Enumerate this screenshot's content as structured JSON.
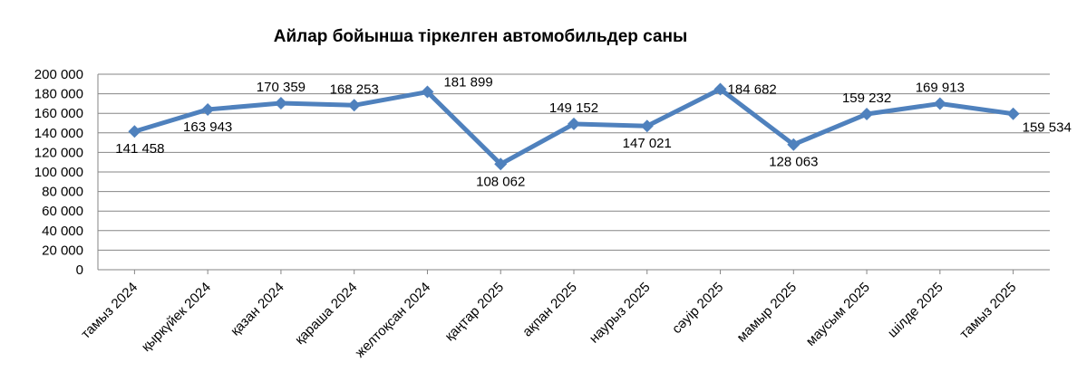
{
  "chart_data": {
    "type": "line",
    "title": "Айлар бойынша тіркелген автомобильдер саны",
    "xlabel": "",
    "ylabel": "",
    "ylim": [
      0,
      200000
    ],
    "yticks": [
      0,
      20000,
      40000,
      60000,
      80000,
      100000,
      120000,
      140000,
      160000,
      180000,
      200000
    ],
    "ytick_labels": [
      "0",
      "20 000",
      "40 000",
      "60 000",
      "80 000",
      "100 000",
      "120 000",
      "140 000",
      "160 000",
      "180 000",
      "200 000"
    ],
    "grid": true,
    "legend": "none",
    "categories": [
      "тамыз 2024",
      "қыркүйек 2024",
      "қазан 2024",
      "қараша 2024",
      "желтоқсан 2024",
      "қаңтар 2025",
      "ақпан 2025",
      "наурыз 2025",
      "сәуір 2025",
      "мамыр 2025",
      "маусым 2025",
      "шілде 2025",
      "тамыз 2025"
    ],
    "series": [
      {
        "values": [
          141458,
          163943,
          170359,
          168253,
          181899,
          108062,
          149152,
          147021,
          184682,
          128063,
          159232,
          169913,
          159534
        ],
        "data_labels": [
          "141 458",
          "163 943",
          "170 359",
          "168 253",
          "181 899",
          "108 062",
          "149 152",
          "147 021",
          "184 682",
          "128 063",
          "159 232",
          "169 913",
          "159 534"
        ]
      }
    ],
    "colors": {
      "line": "#4F81BD",
      "grid": "#868686",
      "axis": "#868686"
    }
  }
}
